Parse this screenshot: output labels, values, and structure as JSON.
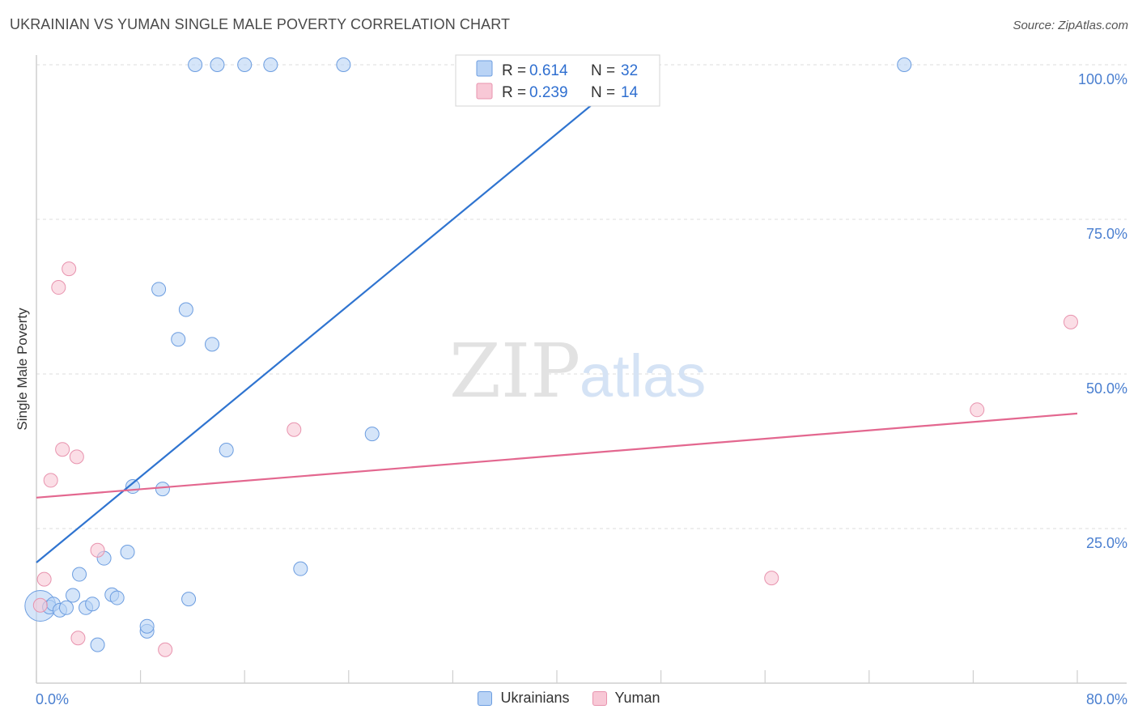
{
  "header": {
    "title": "UKRAINIAN VS YUMAN SINGLE MALE POVERTY CORRELATION CHART",
    "source": "Source: ZipAtlas.com"
  },
  "watermark": {
    "zip": "ZIP",
    "atlas": "atlas"
  },
  "colors": {
    "blue_fill": "#b9d3f5",
    "blue_stroke": "#6c9de0",
    "blue_line": "#2f74d0",
    "pink_fill": "#f8c8d6",
    "pink_stroke": "#e893ae",
    "pink_line": "#e3678f",
    "grid": "#dedede",
    "tick_label": "#4a7fd0"
  },
  "legend": {
    "entries": [
      {
        "r_label": "R = ",
        "r_value": "0.614",
        "n_label": "N = ",
        "n_value": "32"
      },
      {
        "r_label": "R = ",
        "r_value": "0.239",
        "n_label": "N = ",
        "n_value": "14"
      }
    ]
  },
  "chart_data": {
    "type": "scatter",
    "title": "UKRAINIAN VS YUMAN SINGLE MALE POVERTY CORRELATION CHART",
    "xlabel": "",
    "ylabel": "Single Male Poverty",
    "xlim": [
      0,
      80
    ],
    "ylim": [
      0,
      100
    ],
    "x_tick_labels": [
      "0.0%",
      "80.0%"
    ],
    "y_ticks": [
      25,
      50,
      75,
      100
    ],
    "y_tick_labels": [
      "25.0%",
      "50.0%",
      "75.0%",
      "100.0%"
    ],
    "grid": true,
    "legend_position": "top-center",
    "series": [
      {
        "name": "Ukrainians",
        "r": 0.614,
        "n": 32,
        "trend": {
          "x": [
            0,
            47
          ],
          "y": [
            19.5,
            101
          ]
        },
        "points": [
          {
            "x": 0.3,
            "y": 12.5,
            "big": true
          },
          {
            "x": 1.0,
            "y": 12.3
          },
          {
            "x": 1.3,
            "y": 12.8
          },
          {
            "x": 1.8,
            "y": 11.8
          },
          {
            "x": 2.3,
            "y": 12.2
          },
          {
            "x": 2.8,
            "y": 14.2
          },
          {
            "x": 3.3,
            "y": 17.6
          },
          {
            "x": 3.8,
            "y": 12.2
          },
          {
            "x": 4.3,
            "y": 12.8
          },
          {
            "x": 4.7,
            "y": 6.2
          },
          {
            "x": 5.2,
            "y": 20.2
          },
          {
            "x": 5.8,
            "y": 14.3
          },
          {
            "x": 6.2,
            "y": 13.8
          },
          {
            "x": 7.0,
            "y": 21.2
          },
          {
            "x": 7.4,
            "y": 31.8
          },
          {
            "x": 8.5,
            "y": 8.4
          },
          {
            "x": 8.5,
            "y": 9.2
          },
          {
            "x": 9.7,
            "y": 31.4
          },
          {
            "x": 9.4,
            "y": 63.7
          },
          {
            "x": 10.9,
            "y": 55.6
          },
          {
            "x": 11.5,
            "y": 60.4
          },
          {
            "x": 11.7,
            "y": 13.6
          },
          {
            "x": 13.5,
            "y": 54.8
          },
          {
            "x": 14.6,
            "y": 37.7
          },
          {
            "x": 12.2,
            "y": 100
          },
          {
            "x": 13.9,
            "y": 100
          },
          {
            "x": 16.0,
            "y": 100
          },
          {
            "x": 18.0,
            "y": 100
          },
          {
            "x": 20.3,
            "y": 18.5
          },
          {
            "x": 23.6,
            "y": 100
          },
          {
            "x": 25.8,
            "y": 40.3
          },
          {
            "x": 66.7,
            "y": 100
          }
        ]
      },
      {
        "name": "Yuman",
        "r": 0.239,
        "n": 14,
        "trend": {
          "x": [
            0,
            80
          ],
          "y": [
            30.0,
            43.6
          ]
        },
        "points": [
          {
            "x": 0.3,
            "y": 12.6
          },
          {
            "x": 0.6,
            "y": 16.8
          },
          {
            "x": 1.1,
            "y": 32.8
          },
          {
            "x": 1.7,
            "y": 64.0
          },
          {
            "x": 2.0,
            "y": 37.8
          },
          {
            "x": 2.5,
            "y": 67.0
          },
          {
            "x": 3.1,
            "y": 36.6
          },
          {
            "x": 3.2,
            "y": 7.3
          },
          {
            "x": 4.7,
            "y": 21.5
          },
          {
            "x": 9.9,
            "y": 5.4
          },
          {
            "x": 19.8,
            "y": 41.0
          },
          {
            "x": 56.5,
            "y": 17.0
          },
          {
            "x": 72.3,
            "y": 44.2
          },
          {
            "x": 79.5,
            "y": 58.4
          }
        ]
      }
    ]
  }
}
